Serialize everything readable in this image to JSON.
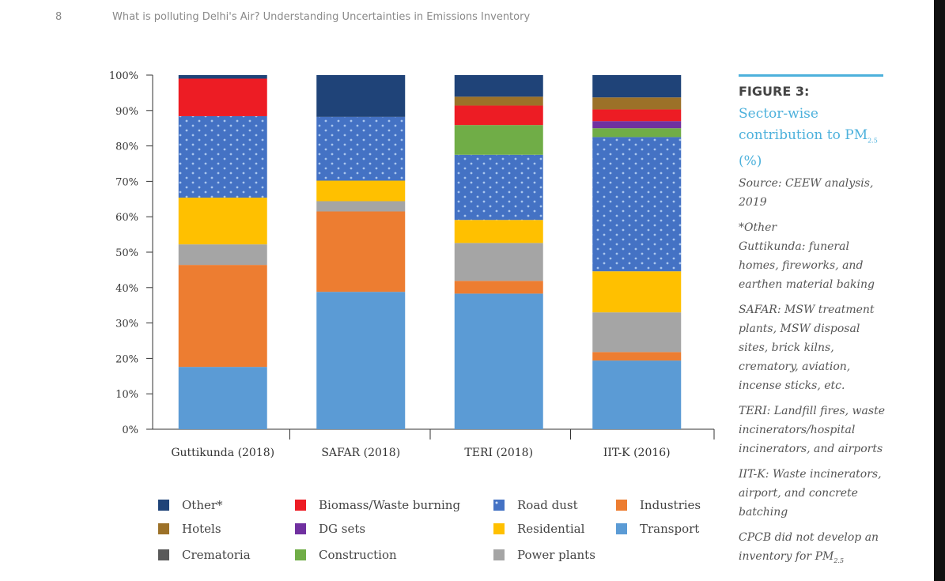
{
  "header": {
    "page_number": "8",
    "running_title": "What is polluting Delhi's Air? Understanding Uncertainties in Emissions Inventory"
  },
  "figure": {
    "label": "FIGURE 3:",
    "title": "Sector-wise contribution to PM",
    "title_sub": "2.5",
    "title_suffix": "(%)",
    "source": "Source: CEEW analysis, 2019",
    "notes": [
      "*Other",
      "Guttikunda: funeral homes, fireworks, and earthen material baking",
      "SAFAR: MSW treatment plants, MSW disposal sites, brick kilns, crematory, aviation, incense sticks, etc.",
      "TERI: Landfill fires, waste incinerators/hospital incinerators, and airports",
      "IIT-K: Waste incinerators, airport, and concrete batching"
    ],
    "cpcb_note": "CPCB did not develop an inventory for PM",
    "cpcb_sub": "2.5"
  },
  "chart_data": {
    "type": "bar",
    "stacked": true,
    "categories": [
      "Guttikunda (2018)",
      "SAFAR (2018)",
      "TERI (2018)",
      "IIT-K (2016)"
    ],
    "ylim": [
      0,
      100
    ],
    "yticks": [
      "0%",
      "10%",
      "20%",
      "30%",
      "40%",
      "50%",
      "60%",
      "70%",
      "80%",
      "90%",
      "100%"
    ],
    "legend_position": "bottom",
    "series": [
      {
        "name": "Transport",
        "color": "#5b9bd5",
        "values": [
          17.6,
          38.8,
          38.3,
          19.4
        ]
      },
      {
        "name": "Industries",
        "color": "#ed7d31",
        "values": [
          28.8,
          22.7,
          3.6,
          2.4
        ]
      },
      {
        "name": "Power plants",
        "color": "#a5a5a5",
        "values": [
          5.8,
          2.9,
          10.7,
          11.2
        ]
      },
      {
        "name": "Residential",
        "color": "#ffc000",
        "values": [
          13.2,
          5.8,
          6.5,
          11.6
        ]
      },
      {
        "name": "Road dust",
        "color": "#4472c4",
        "pattern": "dots",
        "values": [
          23.0,
          18.0,
          18.4,
          37.9
        ]
      },
      {
        "name": "Construction",
        "color": "#70ad47",
        "values": [
          0,
          0,
          8.4,
          2.5
        ]
      },
      {
        "name": "DG sets",
        "color": "#7030a0",
        "values": [
          0,
          0,
          0,
          2.0
        ]
      },
      {
        "name": "Biomass/Waste burning",
        "color": "#ed1c24",
        "values": [
          10.6,
          0,
          5.5,
          3.3
        ]
      },
      {
        "name": "Crematoria",
        "color": "#595959",
        "values": [
          0,
          0,
          0,
          0
        ]
      },
      {
        "name": "Hotels",
        "color": "#9c7128",
        "values": [
          0,
          0,
          2.5,
          3.4
        ]
      },
      {
        "name": "Other*",
        "color": "#1f4378",
        "values": [
          1.0,
          11.8,
          6.1,
          6.3
        ]
      }
    ],
    "legend_order": [
      "Other*",
      "Biomass/Waste burning",
      "Road dust",
      "Industries",
      "Hotels",
      "DG sets",
      "Residential",
      "Transport",
      "Crematoria",
      "Construction",
      "Power plants"
    ]
  }
}
